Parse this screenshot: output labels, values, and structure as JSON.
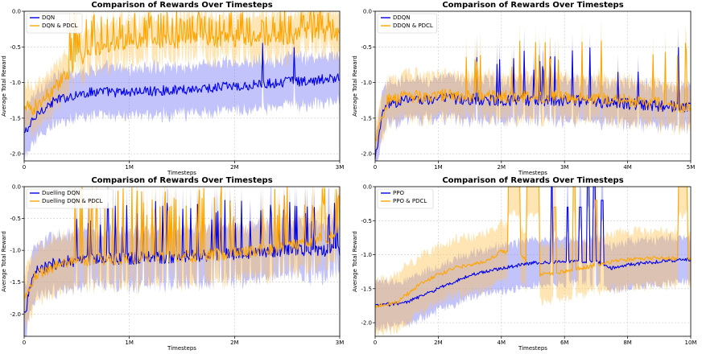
{
  "chart_data": [
    {
      "type": "line",
      "title": "Comparison of Rewards Over Timesteps",
      "xlabel": "Timesteps",
      "ylabel": "Average Total Reward",
      "xlim": [
        0,
        3000000
      ],
      "ylim": [
        -2.1,
        0.0
      ],
      "xticks": [
        0,
        1000000,
        2000000,
        3000000
      ],
      "xtick_labels": [
        "0",
        "1M",
        "2M",
        "3M"
      ],
      "yticks": [
        -2.0,
        -1.5,
        -1.0,
        -0.5,
        0.0
      ],
      "ytick_labels": [
        "-2.0",
        "-1.5",
        "-1.0",
        "-0.5",
        "0.0"
      ],
      "grid": true,
      "legend_position": "top-left",
      "series": [
        {
          "name": "DQN",
          "color": "#0000ee",
          "band_color": "#6f6ff7",
          "x": [
            0,
            150000,
            300000,
            500000,
            700000,
            900000,
            1200000,
            1500000,
            1800000,
            2100000,
            2400000,
            2700000,
            3000000
          ],
          "values": [
            -1.72,
            -1.4,
            -1.25,
            -1.17,
            -1.12,
            -1.14,
            -1.12,
            -1.1,
            -1.07,
            -1.05,
            -1.0,
            -0.98,
            -0.92
          ],
          "band": 0.33,
          "noise": 0.07,
          "spike_prob": 0.03,
          "spike_to": -0.3,
          "spike_start": 1800000
        },
        {
          "name": "DQN & PDCL",
          "color": "#ffa500",
          "band_color": "#ffc14d",
          "x": [
            0,
            150000,
            300000,
            500000,
            700000,
            1000000,
            1500000,
            2000000,
            2500000,
            3000000
          ],
          "values": [
            -1.4,
            -1.3,
            -1.05,
            -0.7,
            -0.5,
            -0.42,
            -0.4,
            -0.38,
            -0.35,
            -0.3
          ],
          "band": 0.3,
          "noise": 0.12,
          "spike_prob": 0.25,
          "spike_to": 0.0,
          "spike_start": 400000
        }
      ]
    },
    {
      "type": "line",
      "title": "Comparison of Rewards Over Timesteps",
      "xlabel": "Timesteps",
      "ylabel": "Average Total Reward",
      "xlim": [
        0,
        5000000
      ],
      "ylim": [
        -2.1,
        0.0
      ],
      "xticks": [
        0,
        1000000,
        2000000,
        3000000,
        4000000,
        5000000
      ],
      "xtick_labels": [
        "0",
        "1M",
        "2M",
        "3M",
        "4M",
        "5M"
      ],
      "yticks": [
        -2.0,
        -1.5,
        -1.0,
        -0.5,
        0.0
      ],
      "ytick_labels": [
        "-2.0",
        "-1.5",
        "-1.0",
        "-0.5",
        "0.0"
      ],
      "grid": true,
      "legend_position": "top-left",
      "series": [
        {
          "name": "DDQN",
          "color": "#0000ee",
          "band_color": "#6f6ff7",
          "x": [
            0,
            100000,
            200000,
            500000,
            1000000,
            2000000,
            3000000,
            4000000,
            5000000
          ],
          "values": [
            -2.1,
            -1.5,
            -1.3,
            -1.25,
            -1.22,
            -1.25,
            -1.25,
            -1.3,
            -1.35
          ],
          "band": 0.28,
          "noise": 0.08,
          "spike_prob": 0.05,
          "spike_to": -0.5,
          "spike_start": 1500000
        },
        {
          "name": "DDQN & PDCL",
          "color": "#ffa500",
          "band_color": "#ffc14d",
          "x": [
            0,
            100000,
            200000,
            500000,
            1000000,
            2000000,
            3000000,
            4000000,
            5000000
          ],
          "values": [
            -1.8,
            -1.5,
            -1.25,
            -1.2,
            -1.18,
            -1.2,
            -1.2,
            -1.25,
            -1.35
          ],
          "band": 0.3,
          "noise": 0.09,
          "spike_prob": 0.07,
          "spike_to": -0.4,
          "spike_start": 1200000
        }
      ]
    },
    {
      "type": "line",
      "title": "Comparison of Rewards Over Timesteps",
      "xlabel": "Timesteps",
      "ylabel": "Average Total Reward",
      "xlim": [
        0,
        3000000
      ],
      "ylim": [
        -2.35,
        0.0
      ],
      "xticks": [
        0,
        1000000,
        2000000,
        3000000
      ],
      "xtick_labels": [
        "0",
        "1M",
        "2M",
        "3M"
      ],
      "yticks": [
        -2.0,
        -1.5,
        -1.0,
        -0.5,
        0.0
      ],
      "ytick_labels": [
        "-2.0",
        "-1.5",
        "-1.0",
        "-0.5",
        "0.0"
      ],
      "grid": true,
      "legend_position": "top-left",
      "series": [
        {
          "name": "Duelling DQN",
          "color": "#0000ee",
          "band_color": "#6f6ff7",
          "x": [
            0,
            100000,
            300000,
            600000,
            1000000,
            1500000,
            2000000,
            2500000,
            3000000
          ],
          "values": [
            -2.0,
            -1.35,
            -1.2,
            -1.15,
            -1.12,
            -1.1,
            -1.05,
            -1.0,
            -1.0
          ],
          "band": 0.42,
          "noise": 0.1,
          "spike_prob": 0.14,
          "spike_to": -0.2,
          "spike_start": 400000
        },
        {
          "name": "Duelling DQN & PDCL",
          "color": "#ffa500",
          "band_color": "#ffc14d",
          "x": [
            0,
            100000,
            300000,
            600000,
            1000000,
            1500000,
            2000000,
            2500000,
            3000000
          ],
          "values": [
            -1.8,
            -1.4,
            -1.25,
            -1.15,
            -1.12,
            -1.1,
            -1.05,
            -0.95,
            -0.75
          ],
          "band": 0.42,
          "noise": 0.1,
          "spike_prob": 0.2,
          "spike_to": 0.0,
          "spike_start": 400000
        }
      ]
    },
    {
      "type": "line",
      "title": "Comparison of Rewards Over Timesteps",
      "xlabel": "Timesteps",
      "ylabel": "Average Total Reward",
      "xlim": [
        0,
        10000000
      ],
      "ylim": [
        -2.2,
        0.0
      ],
      "xticks": [
        0,
        2000000,
        4000000,
        6000000,
        8000000,
        10000000
      ],
      "xtick_labels": [
        "0",
        "2M",
        "4M",
        "6M",
        "8M",
        "10M"
      ],
      "yticks": [
        -2.0,
        -1.5,
        -1.0,
        -0.5,
        0.0
      ],
      "ytick_labels": [
        "-2.0",
        "-1.5",
        "-1.0",
        "-0.5",
        "0.0"
      ],
      "grid": true,
      "legend_position": "top-left",
      "series": [
        {
          "name": "PPO",
          "color": "#0000ee",
          "band_color": "#6f6ff7",
          "x": [
            0,
            1000000,
            2000000,
            3000000,
            4000000,
            5000000,
            6000000,
            7000000,
            7500000,
            8000000,
            9000000,
            10000000
          ],
          "values": [
            -1.75,
            -1.7,
            -1.5,
            -1.3,
            -1.2,
            -1.12,
            -1.1,
            -1.1,
            -1.2,
            -1.15,
            -1.1,
            -1.07
          ],
          "band": 0.33,
          "noise": 0.025,
          "spikes": [
            [
              5600000,
              0.0
            ],
            [
              6100000,
              -0.3
            ],
            [
              6500000,
              -0.3
            ],
            [
              6750000,
              0.0
            ],
            [
              6950000,
              0.0
            ],
            [
              7200000,
              -0.2
            ]
          ]
        },
        {
          "name": "PPO & PDCL",
          "color": "#ffa500",
          "band_color": "#ffc14d",
          "x": [
            0,
            700000,
            1500000,
            2500000,
            3500000,
            4000000,
            4600000,
            5200000,
            6000000,
            7000000,
            7500000,
            8500000,
            9500000,
            10000000
          ],
          "values": [
            -1.75,
            -1.7,
            -1.4,
            -1.2,
            -1.1,
            -0.95,
            -1.0,
            -1.3,
            -1.25,
            -1.15,
            -1.1,
            -1.05,
            -1.05,
            -1.05
          ],
          "band": 0.4,
          "noise": 0.03,
          "plateaus": [
            [
              4200000,
              4600000,
              0.0
            ],
            [
              4800000,
              5200000,
              0.0
            ],
            [
              9600000,
              9900000,
              0.0
            ]
          ],
          "spikes": [
            [
              5700000,
              -0.3
            ],
            [
              6300000,
              0.0
            ],
            [
              7000000,
              -0.2
            ]
          ]
        }
      ]
    }
  ]
}
